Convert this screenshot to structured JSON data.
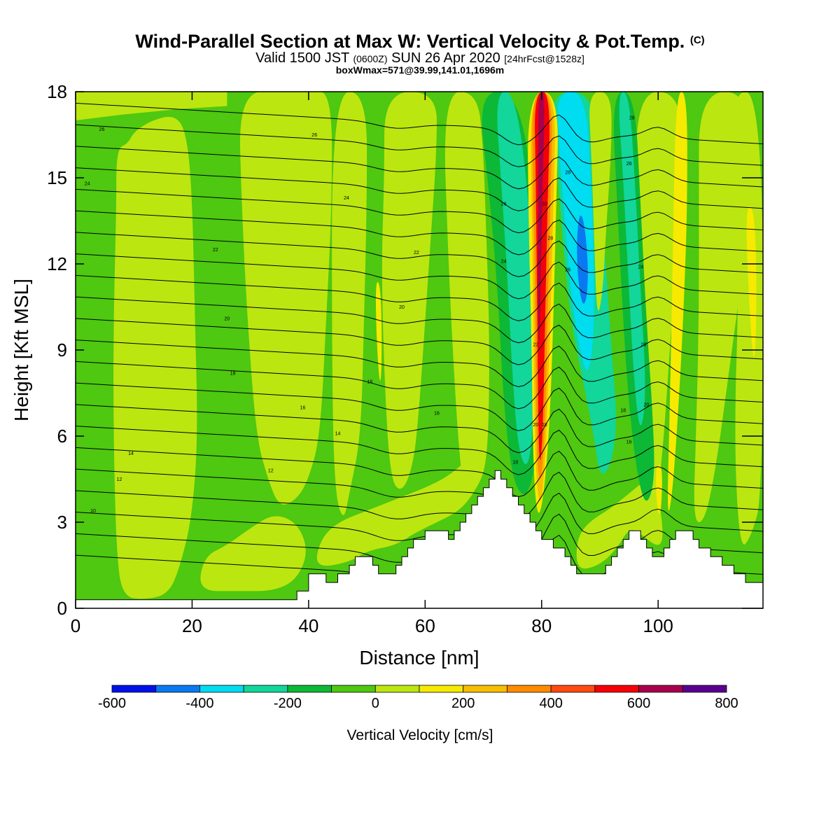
{
  "header": {
    "title": "Wind-Parallel Section at Max W: Vertical Velocity & Pot.Temp.",
    "title_mark": "(C)",
    "subtitle_a": "Valid 1500 JST",
    "subtitle_b": "(0600Z)",
    "subtitle_c": "SUN 26 Apr 2020",
    "subtitle_d": "[24hrFcst@1528z]",
    "subtitle_e": "boxWmax=571@39.99,141.01,1696m"
  },
  "chart_data": {
    "type": "heatmap",
    "xlabel": "Distance [nm]",
    "ylabel": "Height [Kft MSL]",
    "xlim": [
      0,
      118
    ],
    "ylim": [
      0,
      18
    ],
    "x_ticks": [
      0,
      20,
      40,
      60,
      80,
      100
    ],
    "y_ticks": [
      0,
      3,
      6,
      9,
      12,
      15,
      18
    ],
    "colorbar": {
      "title": "Vertical Velocity [cm/s]",
      "levels": [
        -600,
        -500,
        -400,
        -300,
        -200,
        -100,
        0,
        100,
        200,
        300,
        400,
        500,
        600,
        700,
        800
      ],
      "tick_labels": [
        "-600",
        "-400",
        "-200",
        "0",
        "200",
        "400",
        "600",
        "800"
      ],
      "colors": [
        "#0010e8",
        "#0a78f0",
        "#00dcf0",
        "#12d69a",
        "#0cb836",
        "#4ec810",
        "#bce610",
        "#f6ea00",
        "#f5be00",
        "#ff8c00",
        "#ff4a10",
        "#f50008",
        "#a8004c",
        "#5a0090"
      ]
    },
    "terrain_kft": [
      [
        0,
        0.3
      ],
      [
        38,
        0.3
      ],
      [
        38,
        0.6
      ],
      [
        40,
        0.6
      ],
      [
        40,
        1.2
      ],
      [
        43,
        1.2
      ],
      [
        43,
        0.9
      ],
      [
        45,
        0.9
      ],
      [
        45,
        1.2
      ],
      [
        47,
        1.2
      ],
      [
        47,
        1.5
      ],
      [
        48,
        1.5
      ],
      [
        48,
        1.8
      ],
      [
        51,
        1.8
      ],
      [
        51,
        1.5
      ],
      [
        52,
        1.5
      ],
      [
        52,
        1.2
      ],
      [
        55,
        1.2
      ],
      [
        55,
        1.5
      ],
      [
        56,
        1.5
      ],
      [
        56,
        1.8
      ],
      [
        57,
        1.8
      ],
      [
        57,
        2.1
      ],
      [
        58,
        2.1
      ],
      [
        58,
        2.4
      ],
      [
        60,
        2.4
      ],
      [
        60,
        2.7
      ],
      [
        64,
        2.7
      ],
      [
        64,
        2.4
      ],
      [
        65,
        2.4
      ],
      [
        65,
        2.7
      ],
      [
        66,
        2.7
      ],
      [
        66,
        3.0
      ],
      [
        67,
        3.0
      ],
      [
        67,
        3.3
      ],
      [
        68,
        3.3
      ],
      [
        68,
        3.6
      ],
      [
        69,
        3.6
      ],
      [
        69,
        3.9
      ],
      [
        70,
        3.9
      ],
      [
        70,
        4.2
      ],
      [
        71,
        4.2
      ],
      [
        71,
        4.5
      ],
      [
        72,
        4.5
      ],
      [
        72,
        4.8
      ],
      [
        73,
        4.8
      ],
      [
        73,
        4.5
      ],
      [
        74,
        4.5
      ],
      [
        74,
        4.2
      ],
      [
        75,
        4.2
      ],
      [
        75,
        3.9
      ],
      [
        76,
        3.9
      ],
      [
        76,
        3.6
      ],
      [
        77,
        3.6
      ],
      [
        77,
        3.3
      ],
      [
        78,
        3.3
      ],
      [
        78,
        3.0
      ],
      [
        79,
        3.0
      ],
      [
        79,
        2.7
      ],
      [
        80,
        2.7
      ],
      [
        80,
        2.4
      ],
      [
        82,
        2.4
      ],
      [
        82,
        2.1
      ],
      [
        84,
        2.1
      ],
      [
        84,
        1.8
      ],
      [
        85,
        1.8
      ],
      [
        85,
        1.5
      ],
      [
        86,
        1.5
      ],
      [
        86,
        1.2
      ],
      [
        91,
        1.2
      ],
      [
        91,
        1.5
      ],
      [
        92,
        1.5
      ],
      [
        92,
        1.8
      ],
      [
        93,
        1.8
      ],
      [
        93,
        2.1
      ],
      [
        94,
        2.1
      ],
      [
        94,
        2.4
      ],
      [
        95,
        2.4
      ],
      [
        95,
        2.7
      ],
      [
        97,
        2.7
      ],
      [
        97,
        2.4
      ],
      [
        98,
        2.4
      ],
      [
        98,
        2.1
      ],
      [
        99,
        2.1
      ],
      [
        99,
        1.8
      ],
      [
        101,
        1.8
      ],
      [
        101,
        2.1
      ],
      [
        102,
        2.1
      ],
      [
        102,
        2.4
      ],
      [
        103,
        2.4
      ],
      [
        103,
        2.7
      ],
      [
        106,
        2.7
      ],
      [
        106,
        2.4
      ],
      [
        107,
        2.4
      ],
      [
        107,
        2.1
      ],
      [
        109,
        2.1
      ],
      [
        109,
        1.8
      ],
      [
        111,
        1.8
      ],
      [
        111,
        1.5
      ],
      [
        113,
        1.5
      ],
      [
        113,
        1.2
      ],
      [
        115,
        1.2
      ],
      [
        115,
        0.9
      ],
      [
        118,
        0.9
      ]
    ],
    "theta_contour_labels": [
      {
        "text": "26",
        "x": 4.5,
        "y": 16.7
      },
      {
        "text": "26",
        "x": 41,
        "y": 16.5
      },
      {
        "text": "24",
        "x": 2,
        "y": 14.8
      },
      {
        "text": "24",
        "x": 46.5,
        "y": 14.3
      },
      {
        "text": "22",
        "x": 24,
        "y": 12.5
      },
      {
        "text": "22",
        "x": 58.5,
        "y": 12.4
      },
      {
        "text": "20",
        "x": 26,
        "y": 10.1
      },
      {
        "text": "20",
        "x": 56,
        "y": 10.5
      },
      {
        "text": "18",
        "x": 27,
        "y": 8.2
      },
      {
        "text": "18",
        "x": 50.5,
        "y": 7.9
      },
      {
        "text": "16",
        "x": 39,
        "y": 7.0
      },
      {
        "text": "16",
        "x": 62,
        "y": 6.8
      },
      {
        "text": "14",
        "x": 9.5,
        "y": 5.4
      },
      {
        "text": "14",
        "x": 45,
        "y": 6.1
      },
      {
        "text": "12",
        "x": 7.5,
        "y": 4.5
      },
      {
        "text": "12",
        "x": 33.5,
        "y": 4.8
      },
      {
        "text": "10",
        "x": 3,
        "y": 3.4
      },
      {
        "text": "26",
        "x": 73.5,
        "y": 14.1
      },
      {
        "text": "24",
        "x": 73.5,
        "y": 12.1
      },
      {
        "text": "22",
        "x": 79,
        "y": 9.2
      },
      {
        "text": "20",
        "x": 79,
        "y": 6.4
      },
      {
        "text": "18",
        "x": 80.5,
        "y": 6.4
      },
      {
        "text": "18",
        "x": 75.5,
        "y": 5.1
      },
      {
        "text": "30",
        "x": 80.5,
        "y": 14.1
      },
      {
        "text": "28",
        "x": 81.5,
        "y": 12.9
      },
      {
        "text": "28",
        "x": 84.5,
        "y": 15.2
      },
      {
        "text": "26",
        "x": 84.5,
        "y": 11.8
      },
      {
        "text": "28",
        "x": 95.5,
        "y": 17.1
      },
      {
        "text": "26",
        "x": 95,
        "y": 15.5
      },
      {
        "text": "24",
        "x": 97,
        "y": 11.9
      },
      {
        "text": "20",
        "x": 97.5,
        "y": 9.2
      },
      {
        "text": "18",
        "x": 94,
        "y": 6.9
      },
      {
        "text": "20",
        "x": 98,
        "y": 7.1
      },
      {
        "text": "16",
        "x": 95,
        "y": 5.8
      }
    ]
  }
}
